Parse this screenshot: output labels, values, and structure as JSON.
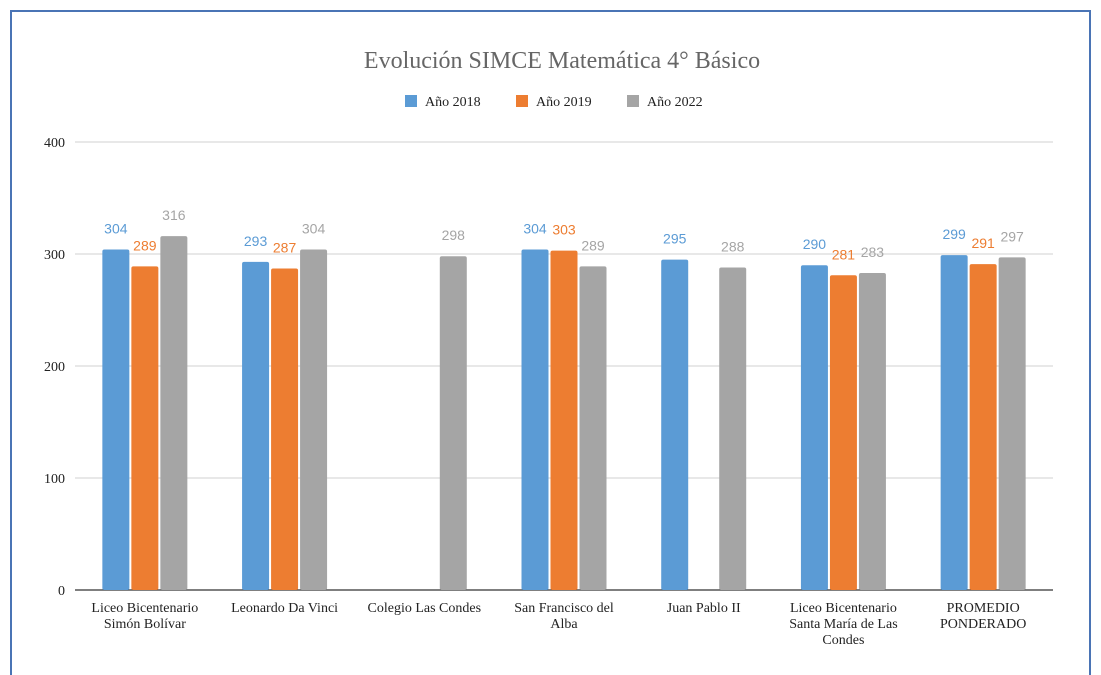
{
  "chart_data": {
    "type": "bar",
    "title": "Evolución SIMCE Matemática 4° Básico",
    "xlabel": "",
    "ylabel": "",
    "ylim": [
      0,
      400
    ],
    "yticks": [
      0,
      100,
      200,
      300,
      400
    ],
    "grid": true,
    "legend_position": "top",
    "categories": [
      [
        "Liceo Bicentenario",
        "Simón Bolívar"
      ],
      [
        "Leonardo Da Vinci"
      ],
      [
        "Colegio Las Condes"
      ],
      [
        "San Francisco del",
        "Alba"
      ],
      [
        "Juan Pablo II"
      ],
      [
        "Liceo Bicentenario",
        "Santa María de Las",
        "Condes"
      ],
      [
        "PROMEDIO",
        "PONDERADO"
      ]
    ],
    "series": [
      {
        "name": "Año 2018",
        "color": "#5b9bd5",
        "values": [
          304,
          293,
          null,
          304,
          295,
          290,
          299
        ]
      },
      {
        "name": "Año 2019",
        "color": "#ed7d31",
        "values": [
          289,
          287,
          null,
          303,
          null,
          281,
          291
        ]
      },
      {
        "name": "Año 2022",
        "color": "#a5a5a5",
        "values": [
          316,
          304,
          298,
          289,
          288,
          283,
          297
        ]
      }
    ]
  }
}
